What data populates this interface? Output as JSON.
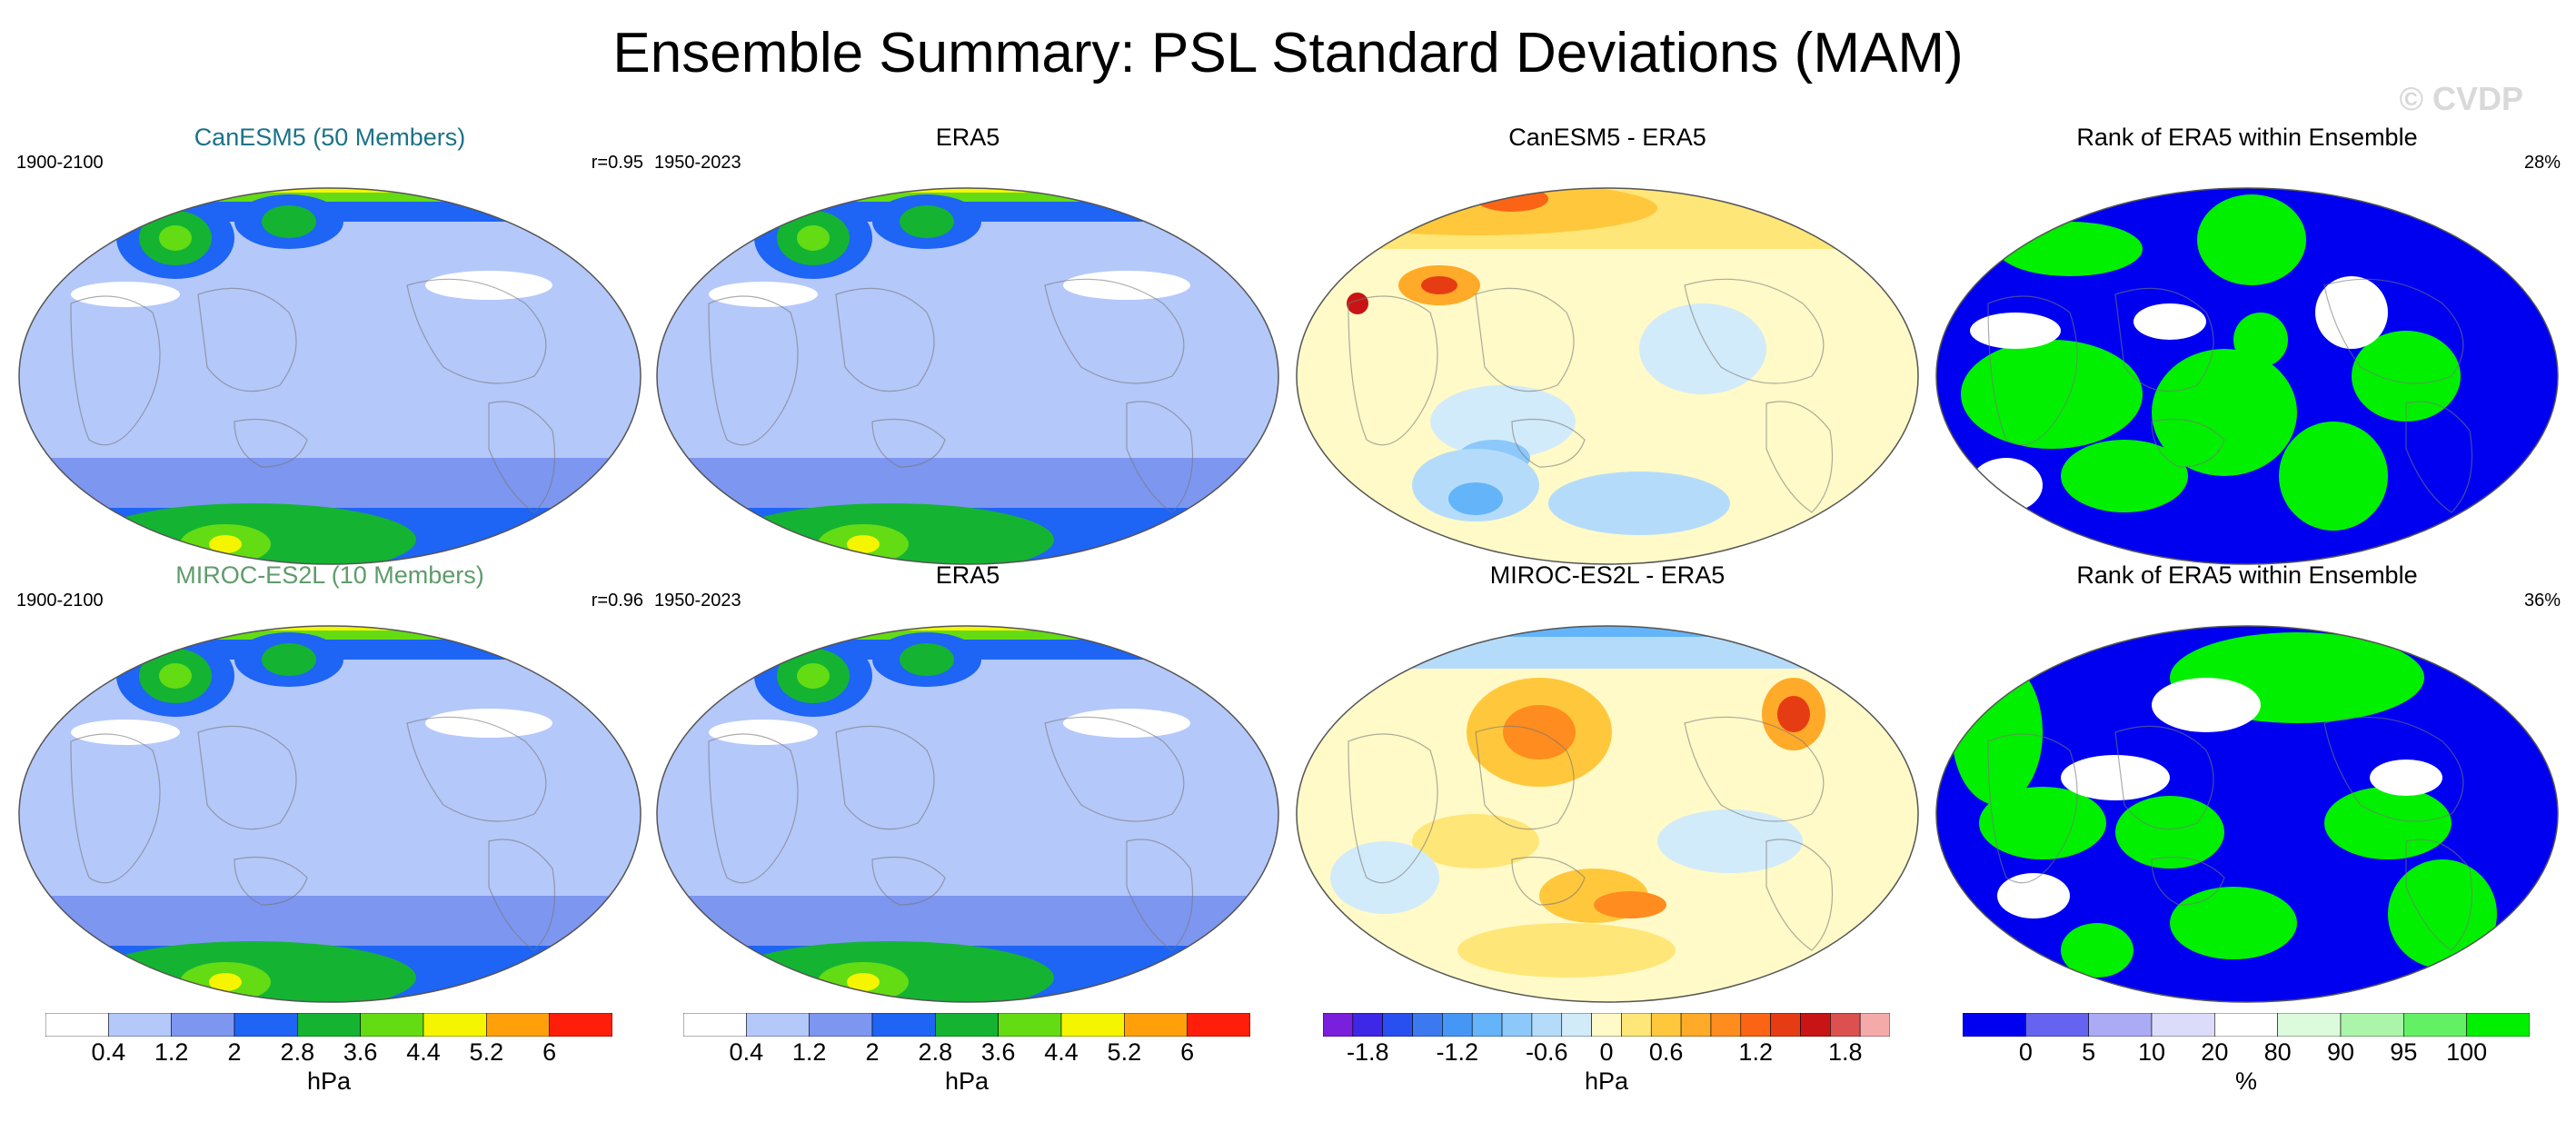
{
  "title": "Ensemble Summary: PSL Standard Deviations (MAM)",
  "watermark": "© CVDP",
  "rows": [
    {
      "panels": [
        {
          "title": "CanESM5 (50 Members)",
          "left": "1900-2100",
          "right": "r=0.95",
          "title_color": "#1b7289",
          "type": "std"
        },
        {
          "title": "ERA5",
          "left": "1950-2023",
          "right": "",
          "title_color": "#000000",
          "type": "std"
        },
        {
          "title": "CanESM5 - ERA5",
          "left": "",
          "right": "",
          "title_color": "#000000",
          "type": "diff"
        },
        {
          "title": "Rank of ERA5 within Ensemble",
          "left": "",
          "right": "28%",
          "title_color": "#000000",
          "type": "rank"
        }
      ]
    },
    {
      "panels": [
        {
          "title": "MIROC-ES2L (10 Members)",
          "left": "1900-2100",
          "right": "r=0.96",
          "title_color": "#5f9b6b",
          "type": "std"
        },
        {
          "title": "ERA5",
          "left": "1950-2023",
          "right": "",
          "title_color": "#000000",
          "type": "std"
        },
        {
          "title": "MIROC-ES2L - ERA5",
          "left": "",
          "right": "",
          "title_color": "#000000",
          "type": "diff"
        },
        {
          "title": "Rank of ERA5 within Ensemble",
          "left": "",
          "right": "36%",
          "title_color": "#000000",
          "type": "rank"
        }
      ]
    }
  ],
  "legends": [
    {
      "name": "std-legend-1",
      "unit": "hPa",
      "labels": [
        "0.4",
        "1.2",
        "2",
        "2.8",
        "3.6",
        "4.4",
        "5.2",
        "6"
      ],
      "colors": [
        "#ffffff",
        "#b4c8fa",
        "#7d96f0",
        "#1e64f5",
        "#14b432",
        "#64dc14",
        "#f5f500",
        "#ffa00a",
        "#ff1e0a"
      ]
    },
    {
      "name": "std-legend-2",
      "unit": "hPa",
      "labels": [
        "0.4",
        "1.2",
        "2",
        "2.8",
        "3.6",
        "4.4",
        "5.2",
        "6"
      ],
      "colors": [
        "#ffffff",
        "#b4c8fa",
        "#7d96f0",
        "#1e64f5",
        "#14b432",
        "#64dc14",
        "#f5f500",
        "#ffa00a",
        "#ff1e0a"
      ]
    },
    {
      "name": "diff-legend",
      "unit": "hPa",
      "labels": [
        "-1.8",
        "-1.2",
        "-0.6",
        "0",
        "0.6",
        "1.2",
        "1.8"
      ],
      "colors": [
        "#7a1fdc",
        "#3c28e6",
        "#2850f0",
        "#3c78f0",
        "#4696f5",
        "#64b4fa",
        "#8cc8fa",
        "#b4dcfa",
        "#d2ebfa",
        "#fffac8",
        "#ffe678",
        "#ffc83c",
        "#ffaa28",
        "#ff8c1e",
        "#fa6414",
        "#e63c14",
        "#c81414",
        "#dc5050",
        "#f5aaaa"
      ]
    },
    {
      "name": "rank-legend",
      "unit": "%",
      "labels": [
        "0",
        "5",
        "10",
        "20",
        "80",
        "90",
        "95",
        "100"
      ],
      "colors": [
        "#0000f0",
        "#6464f0",
        "#aaaaf5",
        "#dcdcfa",
        "#ffffff",
        "#dcfadc",
        "#aaf5aa",
        "#64f064",
        "#00f000"
      ]
    }
  ]
}
